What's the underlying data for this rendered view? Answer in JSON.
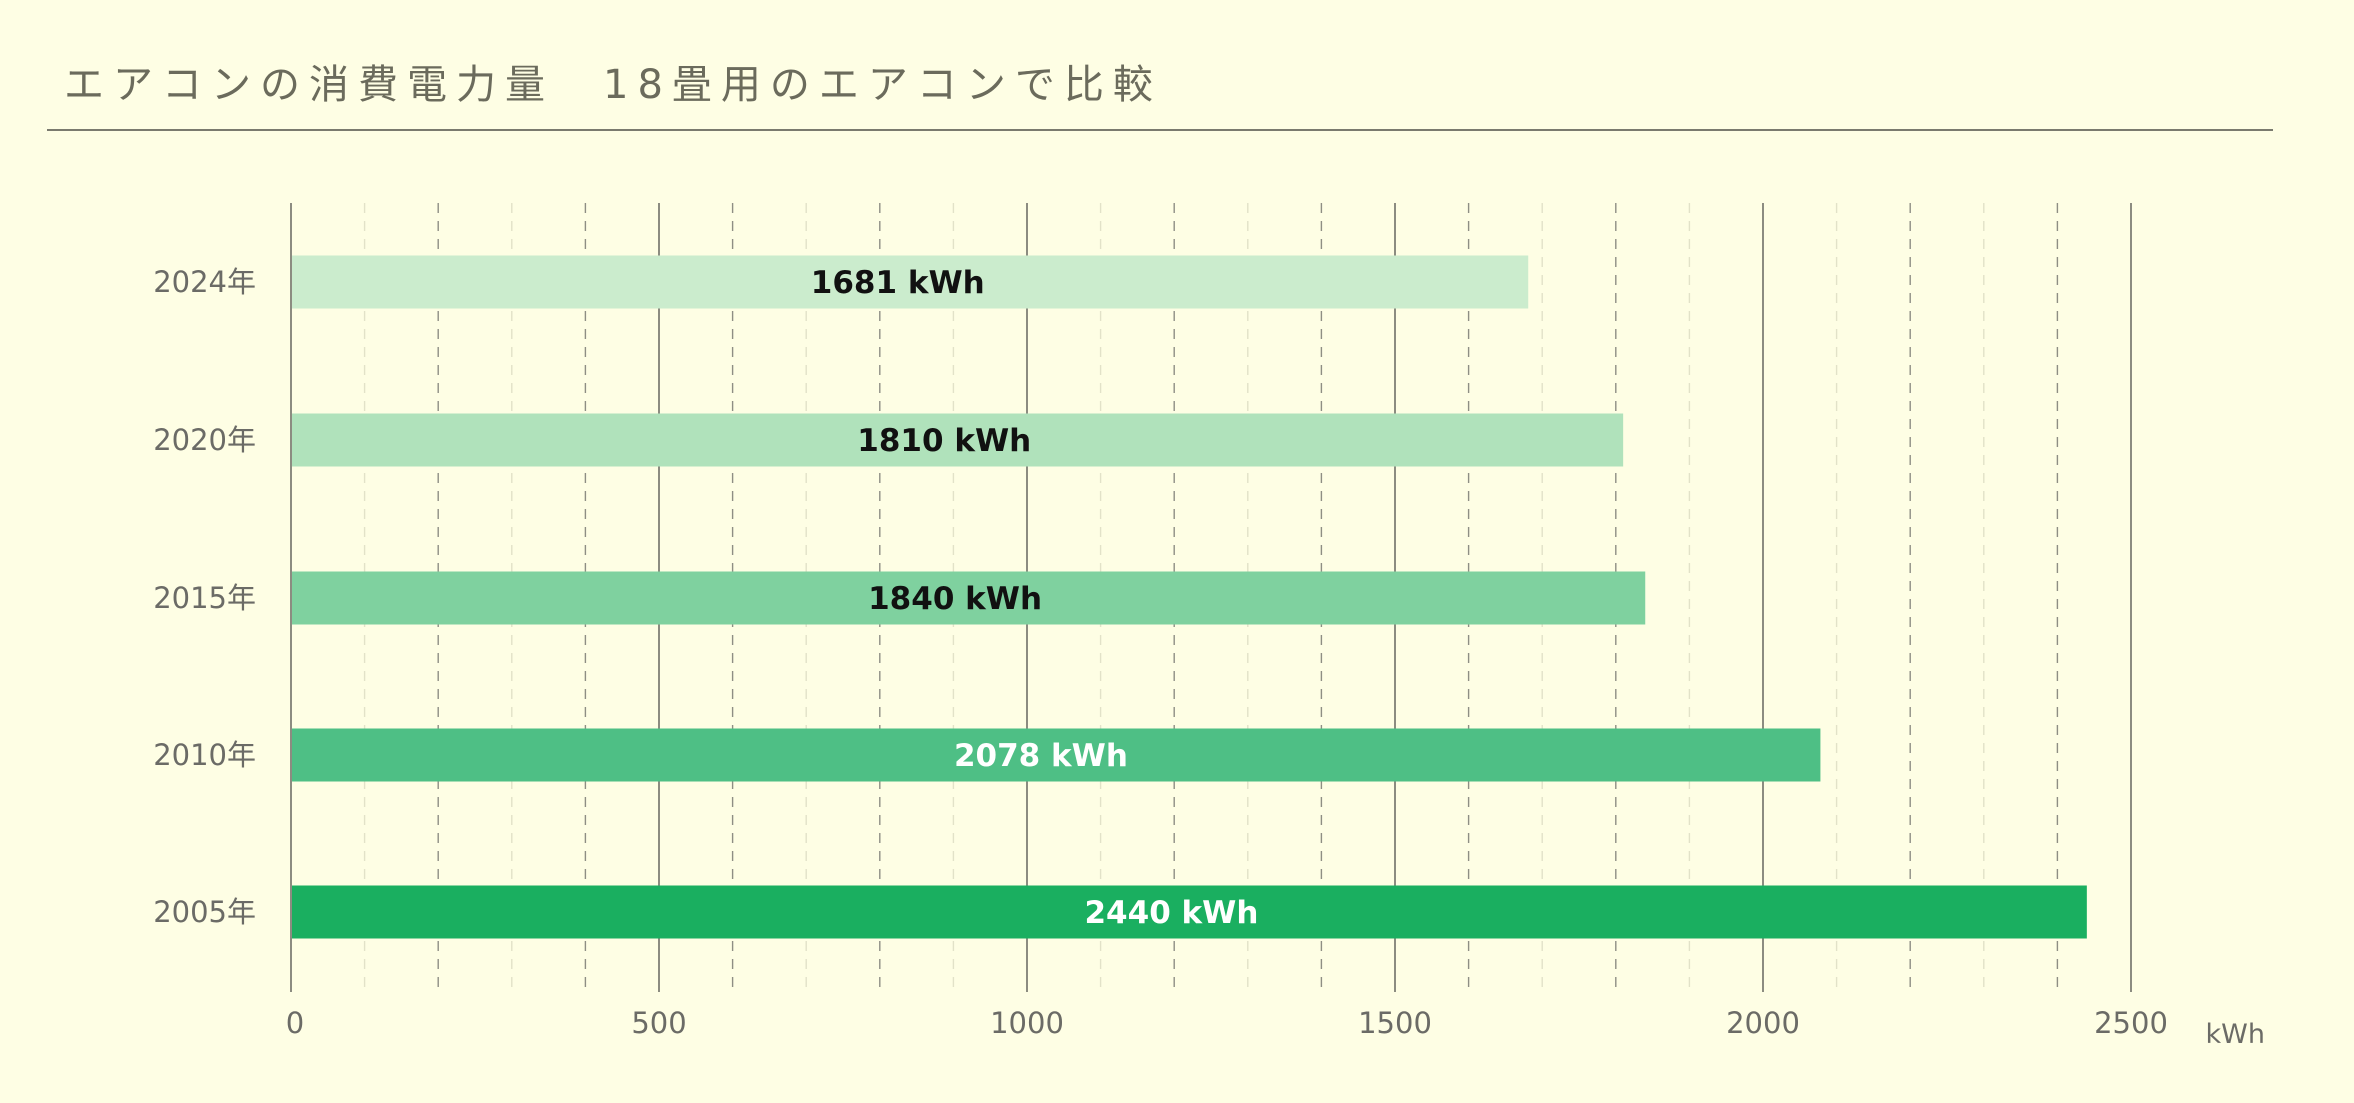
{
  "title": "エアコンの消費電力量　18畳用のエアコンで比較",
  "chart_data": {
    "type": "bar",
    "orientation": "horizontal",
    "categories": [
      "2024年",
      "2020年",
      "2015年",
      "2010年",
      "2005年"
    ],
    "values": [
      1681,
      1810,
      1840,
      2078,
      2440
    ],
    "value_labels": [
      "1681 kWh",
      "1810 kWh",
      "1840 kWh",
      "2078 kWh",
      "2440 kWh"
    ],
    "bar_colors": [
      "#cbeccd",
      "#b0e2bb",
      "#7fd19f",
      "#4ebf85",
      "#1aaf60"
    ],
    "label_colors": [
      "#111111",
      "#111111",
      "#111111",
      "#ffffff",
      "#ffffff"
    ],
    "x_ticks": [
      "0",
      "500",
      "1000",
      "1500",
      "2000",
      "2500"
    ],
    "x_unit": "kWh",
    "xlim": [
      0,
      2500
    ],
    "grid": true,
    "major_step": 500,
    "minor_step": 100
  }
}
